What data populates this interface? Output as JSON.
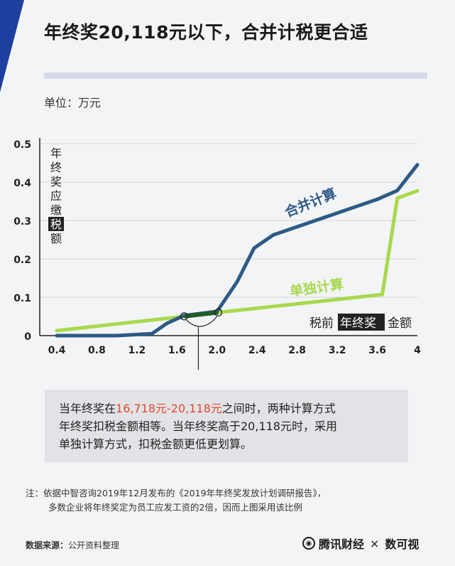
{
  "header": {
    "title": "年终奖20,118元以下，合并计税更合适",
    "unit": "单位：万元"
  },
  "chart_data": {
    "type": "line",
    "title": "年终奖20,118元以下，合并计税更合适",
    "xlabel": [
      "税前",
      "年终奖",
      "金额"
    ],
    "ylabel": [
      "年",
      "终",
      "奖",
      "应",
      "缴",
      "税",
      "额"
    ],
    "ylabel_highlight_index": 5,
    "xlim": [
      0.4,
      4.0
    ],
    "ylim": [
      0,
      0.5
    ],
    "x_ticks": [
      "0.4",
      "0.8",
      "1.2",
      "1.6",
      "2.0",
      "2.4",
      "2.8",
      "3.2",
      "3.6",
      "4"
    ],
    "x_tick_values": [
      0.4,
      0.8,
      1.2,
      1.6,
      2.0,
      2.4,
      2.8,
      3.2,
      3.6,
      4.0
    ],
    "y_ticks": [
      "0",
      "0.1",
      "0.2",
      "0.3",
      "0.4",
      "0.5"
    ],
    "y_tick_values": [
      0,
      0.1,
      0.2,
      0.3,
      0.4,
      0.5
    ],
    "grid": "horizontal",
    "legend": "inline",
    "series": [
      {
        "name": "合并计算",
        "color": "#2d5a86",
        "x": [
          0.4,
          1.0,
          1.35,
          1.5,
          1.67,
          2.0,
          2.2,
          2.37,
          2.56,
          3.6,
          3.8,
          4.0
        ],
        "y": [
          0.0,
          0.0,
          0.005,
          0.032,
          0.052,
          0.063,
          0.14,
          0.228,
          0.262,
          0.355,
          0.378,
          0.445
        ]
      },
      {
        "name": "单独计算",
        "color": "#a8d94e",
        "x": [
          0.4,
          1.67,
          2.0,
          3.65,
          3.8,
          4.0
        ],
        "y": [
          0.013,
          0.05,
          0.06,
          0.107,
          0.358,
          0.377
        ]
      }
    ],
    "annotation": {
      "x_range": [
        1.6718,
        2.0118
      ],
      "y_range": [
        0.0502,
        0.0604
      ]
    }
  },
  "callout": {
    "part1": "当年终奖在",
    "highlight": "16,718元-20,118元",
    "part2": "之间时，两种计算方式",
    "line2": "年终奖扣税金额相等。当年终奖高于20,118元时，采用",
    "line3": "单独计算方式，扣税金额更低更划算。"
  },
  "note": {
    "line1": "注：依据中智咨询2019年12月发布的《2019年年终奖发放计划调研报告》，",
    "line2": "多数企业将年终奖定为员工应发工资的2倍，因而上图采用该比例"
  },
  "source": {
    "label": "数据来源：",
    "text": "公开资料整理"
  },
  "brand": {
    "name1": "腾讯财经",
    "separator": "×",
    "name2": "数可视",
    "logo_icon": "tencent-logo-icon"
  }
}
